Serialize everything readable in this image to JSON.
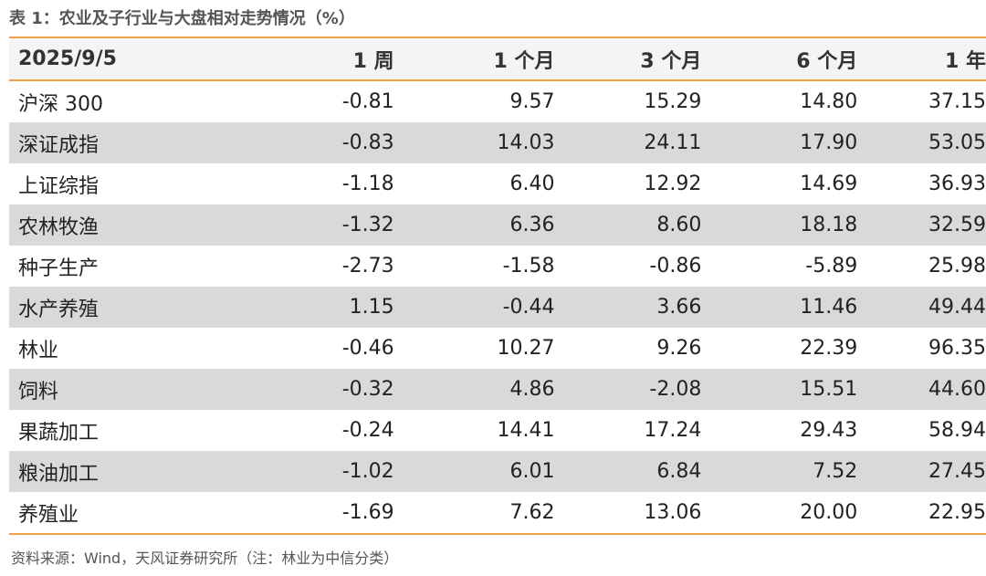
{
  "title": "表 1：农业及子行业与大盘相对走势情况（%）",
  "table": {
    "header": [
      "2025/9/5",
      "1 周",
      "1 个月",
      "3 个月",
      "6 个月",
      "1 年"
    ],
    "rows": [
      [
        "沪深 300",
        "-0.81",
        "9.57",
        "15.29",
        "14.80",
        "37.15"
      ],
      [
        "深证成指",
        "-0.83",
        "14.03",
        "24.11",
        "17.90",
        "53.05"
      ],
      [
        "上证综指",
        "-1.18",
        "6.40",
        "12.92",
        "14.69",
        "36.93"
      ],
      [
        "农林牧渔",
        "-1.32",
        "6.36",
        "8.60",
        "18.18",
        "32.59"
      ],
      [
        "种子生产",
        "-2.73",
        "-1.58",
        "-0.86",
        "-5.89",
        "25.98"
      ],
      [
        "水产养殖",
        "1.15",
        "-0.44",
        "3.66",
        "11.46",
        "49.44"
      ],
      [
        "林业",
        "-0.46",
        "10.27",
        "9.26",
        "22.39",
        "96.35"
      ],
      [
        "饲料",
        "-0.32",
        "4.86",
        "-2.08",
        "15.51",
        "44.60"
      ],
      [
        "果蔬加工",
        "-0.24",
        "14.41",
        "17.24",
        "29.43",
        "58.94"
      ],
      [
        "粮油加工",
        "-1.02",
        "6.01",
        "6.84",
        "7.52",
        "27.45"
      ],
      [
        "养殖业",
        "-1.69",
        "7.62",
        "13.06",
        "20.00",
        "22.95"
      ]
    ]
  },
  "source": "资料来源：Wind，天风证券研究所（注：林业为中信分类）"
}
